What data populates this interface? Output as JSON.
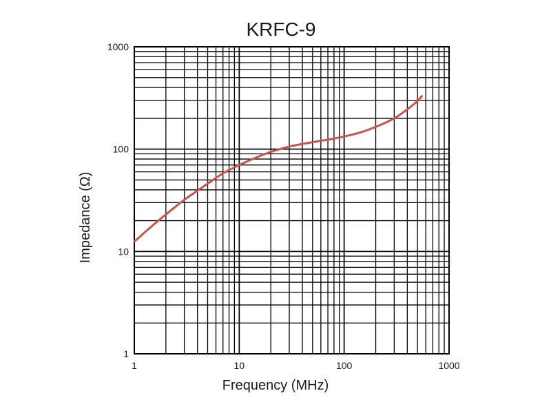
{
  "chart_data": {
    "type": "line",
    "title": "KRFC-9",
    "xlabel": "Frequency (MHz)",
    "ylabel": "Impedance (Ω)",
    "x_scale": "log",
    "y_scale": "log",
    "xlim": [
      1,
      1000
    ],
    "ylim": [
      1,
      1000
    ],
    "grid": true,
    "x_ticks": [
      "1",
      "10",
      "100",
      "1000"
    ],
    "y_ticks": [
      "1",
      "10",
      "100",
      "1000"
    ],
    "series": [
      {
        "color": "#c8534b",
        "x": [
          1,
          1.5,
          2,
          3,
          5,
          7,
          10,
          15,
          20,
          30,
          50,
          70,
          100,
          150,
          200,
          300,
          400,
          500,
          550
        ],
        "y": [
          12.5,
          18,
          23,
          32,
          46,
          58,
          70,
          84,
          94,
          106,
          117,
          124,
          133,
          148,
          165,
          200,
          245,
          295,
          330
        ]
      }
    ]
  }
}
